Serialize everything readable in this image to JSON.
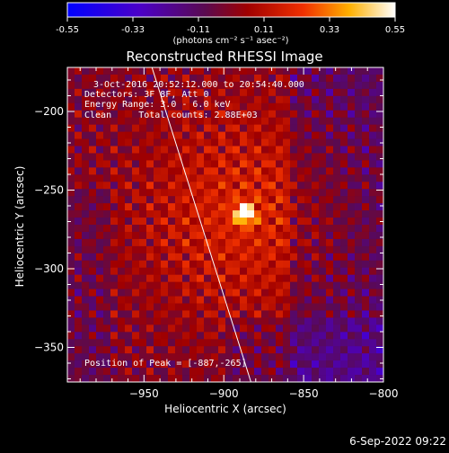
{
  "colorbar": {
    "ticks": [
      "-0.55",
      "-0.33",
      "-0.11",
      "0.11",
      "0.33",
      "0.55"
    ],
    "tick_values": [
      -0.55,
      -0.33,
      -0.11,
      0.11,
      0.33,
      0.55
    ],
    "range": [
      -0.55,
      0.55
    ],
    "unit_label": "(photons cm⁻² s⁻¹ asec⁻²)"
  },
  "chart_data": {
    "type": "heatmap",
    "title": "Reconstructed RHESSI Image",
    "xlabel": "Heliocentric X (arcsec)",
    "ylabel": "Heliocentric Y (arcsec)",
    "xlim": [
      -998,
      -800
    ],
    "ylim": [
      -372,
      -172
    ],
    "xticks": [
      -950,
      -900,
      -850,
      -800
    ],
    "yticks": [
      -200,
      -250,
      -300,
      -350
    ],
    "xtick_labels": [
      "−950",
      "−900",
      "−850",
      "−800"
    ],
    "ytick_labels": [
      "−200",
      "−250",
      "−300",
      "−350"
    ],
    "peak": {
      "x": -887,
      "y": -265,
      "value": 0.55
    },
    "limb_line": [
      {
        "x": -945,
        "y": -172
      },
      {
        "x": -883,
        "y": -372
      }
    ],
    "grid": false
  },
  "info": {
    "time_range": "3-Oct-2016 20:52:12.000 to 20:54:40.000",
    "detectors": "Detectors: 3F 8F, Att 0",
    "energy": "Energy Range: 3.0 - 6.0 keV",
    "clean": "Clean     Total counts: 2.88E+03",
    "peak_label": "Position of Peak = [-887,-265]"
  },
  "footer": {
    "timestamp": "6-Sep-2022 09:22"
  }
}
